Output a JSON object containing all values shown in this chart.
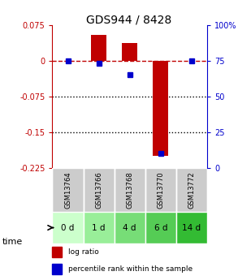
{
  "title": "GDS944 / 8428",
  "samples": [
    "GSM13764",
    "GSM13766",
    "GSM13768",
    "GSM13770",
    "GSM13772"
  ],
  "time_labels": [
    "0 d",
    "1 d",
    "4 d",
    "6 d",
    "14 d"
  ],
  "log_ratios": [
    0.0,
    0.055,
    0.038,
    -0.2,
    0.0
  ],
  "percentile_ranks": [
    75,
    73,
    65,
    10,
    75
  ],
  "bar_color": "#c00000",
  "dot_color": "#0000cc",
  "ylim_left": [
    -0.225,
    0.075
  ],
  "ylim_right": [
    0,
    100
  ],
  "yticks_left": [
    0.075,
    0,
    -0.075,
    -0.15,
    -0.225
  ],
  "yticks_right": [
    100,
    75,
    50,
    25,
    0
  ],
  "hlines_dotted": [
    -0.075,
    -0.15
  ],
  "hline_dashed": 0,
  "bar_width": 0.5,
  "gsm_bg": "#cccccc",
  "time_bg_colors": [
    "#ccffcc",
    "#99ee99",
    "#77dd77",
    "#55cc55",
    "#33bb33"
  ],
  "legend_items": [
    {
      "label": "log ratio",
      "color": "#c00000"
    },
    {
      "label": "percentile rank within the sample",
      "color": "#0000cc"
    }
  ]
}
